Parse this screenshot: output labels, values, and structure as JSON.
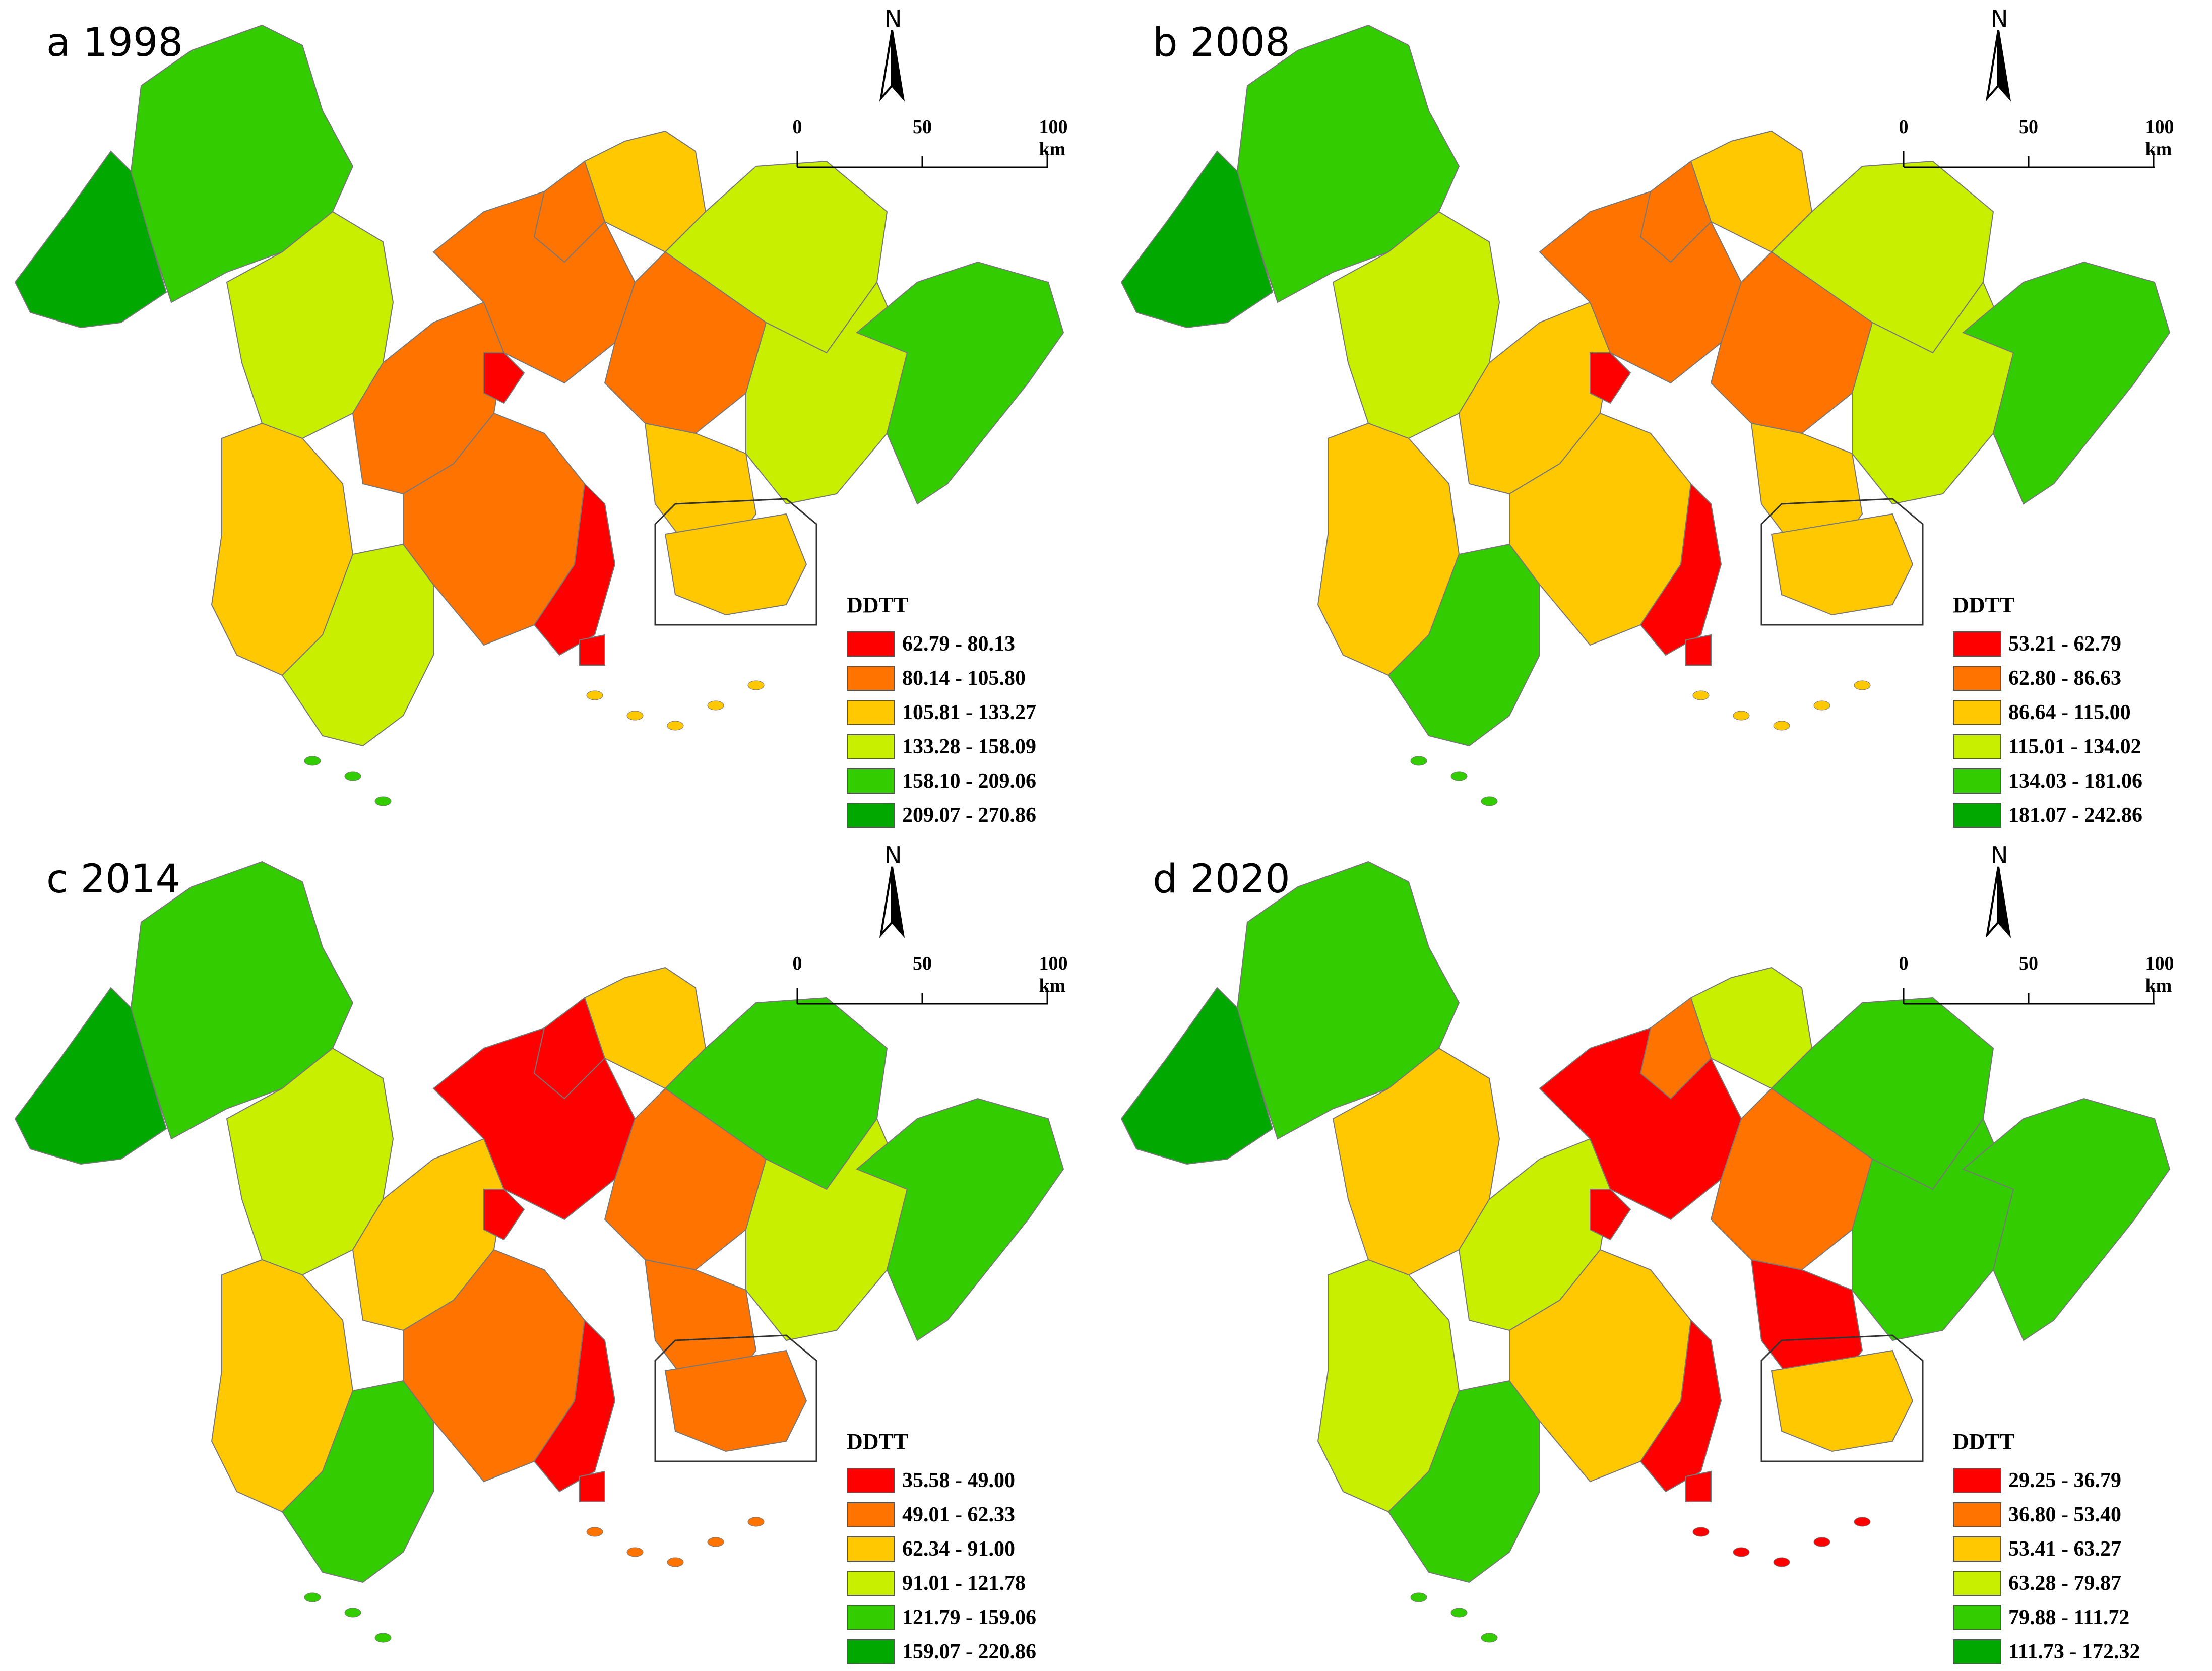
{
  "north_label": "N",
  "scale": {
    "ticks": [
      "0",
      "50",
      "100 km"
    ]
  },
  "legend_title": "DDTT",
  "class_colors": [
    "#ff0000",
    "#ff7300",
    "#ffc800",
    "#c8ee00",
    "#33cc00",
    "#00a800"
  ],
  "panels": [
    {
      "title": "a 1998",
      "classes": [
        "62.79 - 80.13",
        "80.14 - 105.80",
        "105.81 - 133.27",
        "133.28 - 158.09",
        "158.10 - 209.06",
        "209.07 - 270.86"
      ]
    },
    {
      "title": "b 2008",
      "classes": [
        "53.21 - 62.79",
        "62.80 - 86.63",
        "86.64 - 115.00",
        "115.01 - 134.02",
        "134.03 - 181.06",
        "181.07 - 242.86"
      ]
    },
    {
      "title": "c 2014",
      "classes": [
        "35.58 - 49.00",
        "49.01 - 62.33",
        "62.34 - 91.00",
        "91.01 - 121.78",
        "121.79 - 159.06",
        "159.07 - 220.86"
      ]
    },
    {
      "title": "d 2020",
      "classes": [
        "29.25 - 36.79",
        "36.80 - 53.40",
        "53.41 - 63.27",
        "63.28 - 79.87",
        "79.88 - 111.72",
        "111.73 - 172.32"
      ]
    }
  ]
}
